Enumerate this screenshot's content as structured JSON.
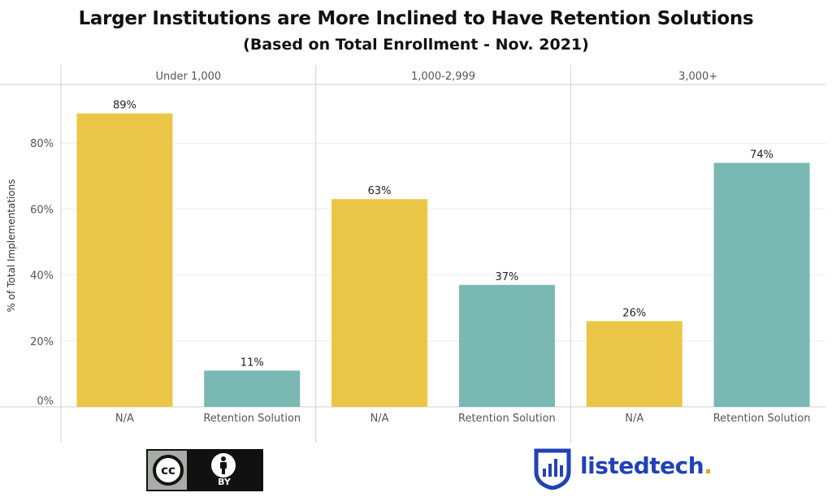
{
  "title": "Larger Institutions are More Inclined to Have Retention Solutions",
  "subtitle": "(Based on Total Enrollment - Nov. 2021)",
  "chart_data": {
    "type": "bar",
    "title": "Larger Institutions are More Inclined to Have Retention Solutions",
    "subtitle": "(Based on Total Enrollment - Nov. 2021)",
    "ylabel": "% of Total Implementations",
    "ylim": [
      0,
      100
    ],
    "yticks": [
      0,
      20,
      40,
      60,
      80
    ],
    "ytick_labels": [
      "0%",
      "20%",
      "40%",
      "60%",
      "80%"
    ],
    "grid": true,
    "groups": [
      "Under 1,000",
      "1,000-2,999",
      "3,000+"
    ],
    "categories": [
      "N/A",
      "Retention Solution"
    ],
    "series_colors": {
      "N/A": "#ebc646",
      "Retention Solution": "#79b8b3"
    },
    "values": [
      {
        "group": "Under 1,000",
        "N/A": 89,
        "Retention Solution": 11
      },
      {
        "group": "1,000-2,999",
        "N/A": 63,
        "Retention Solution": 37
      },
      {
        "group": "3,000+",
        "N/A": 26,
        "Retention Solution": 74
      }
    ],
    "data_labels": [
      [
        "89%",
        "11%"
      ],
      [
        "63%",
        "37%"
      ],
      [
        "26%",
        "74%"
      ]
    ]
  },
  "footer": {
    "license_badge": {
      "cc_text": "cc",
      "by_text": "BY"
    },
    "brand": {
      "name": "listedtech",
      "dot": "."
    }
  }
}
